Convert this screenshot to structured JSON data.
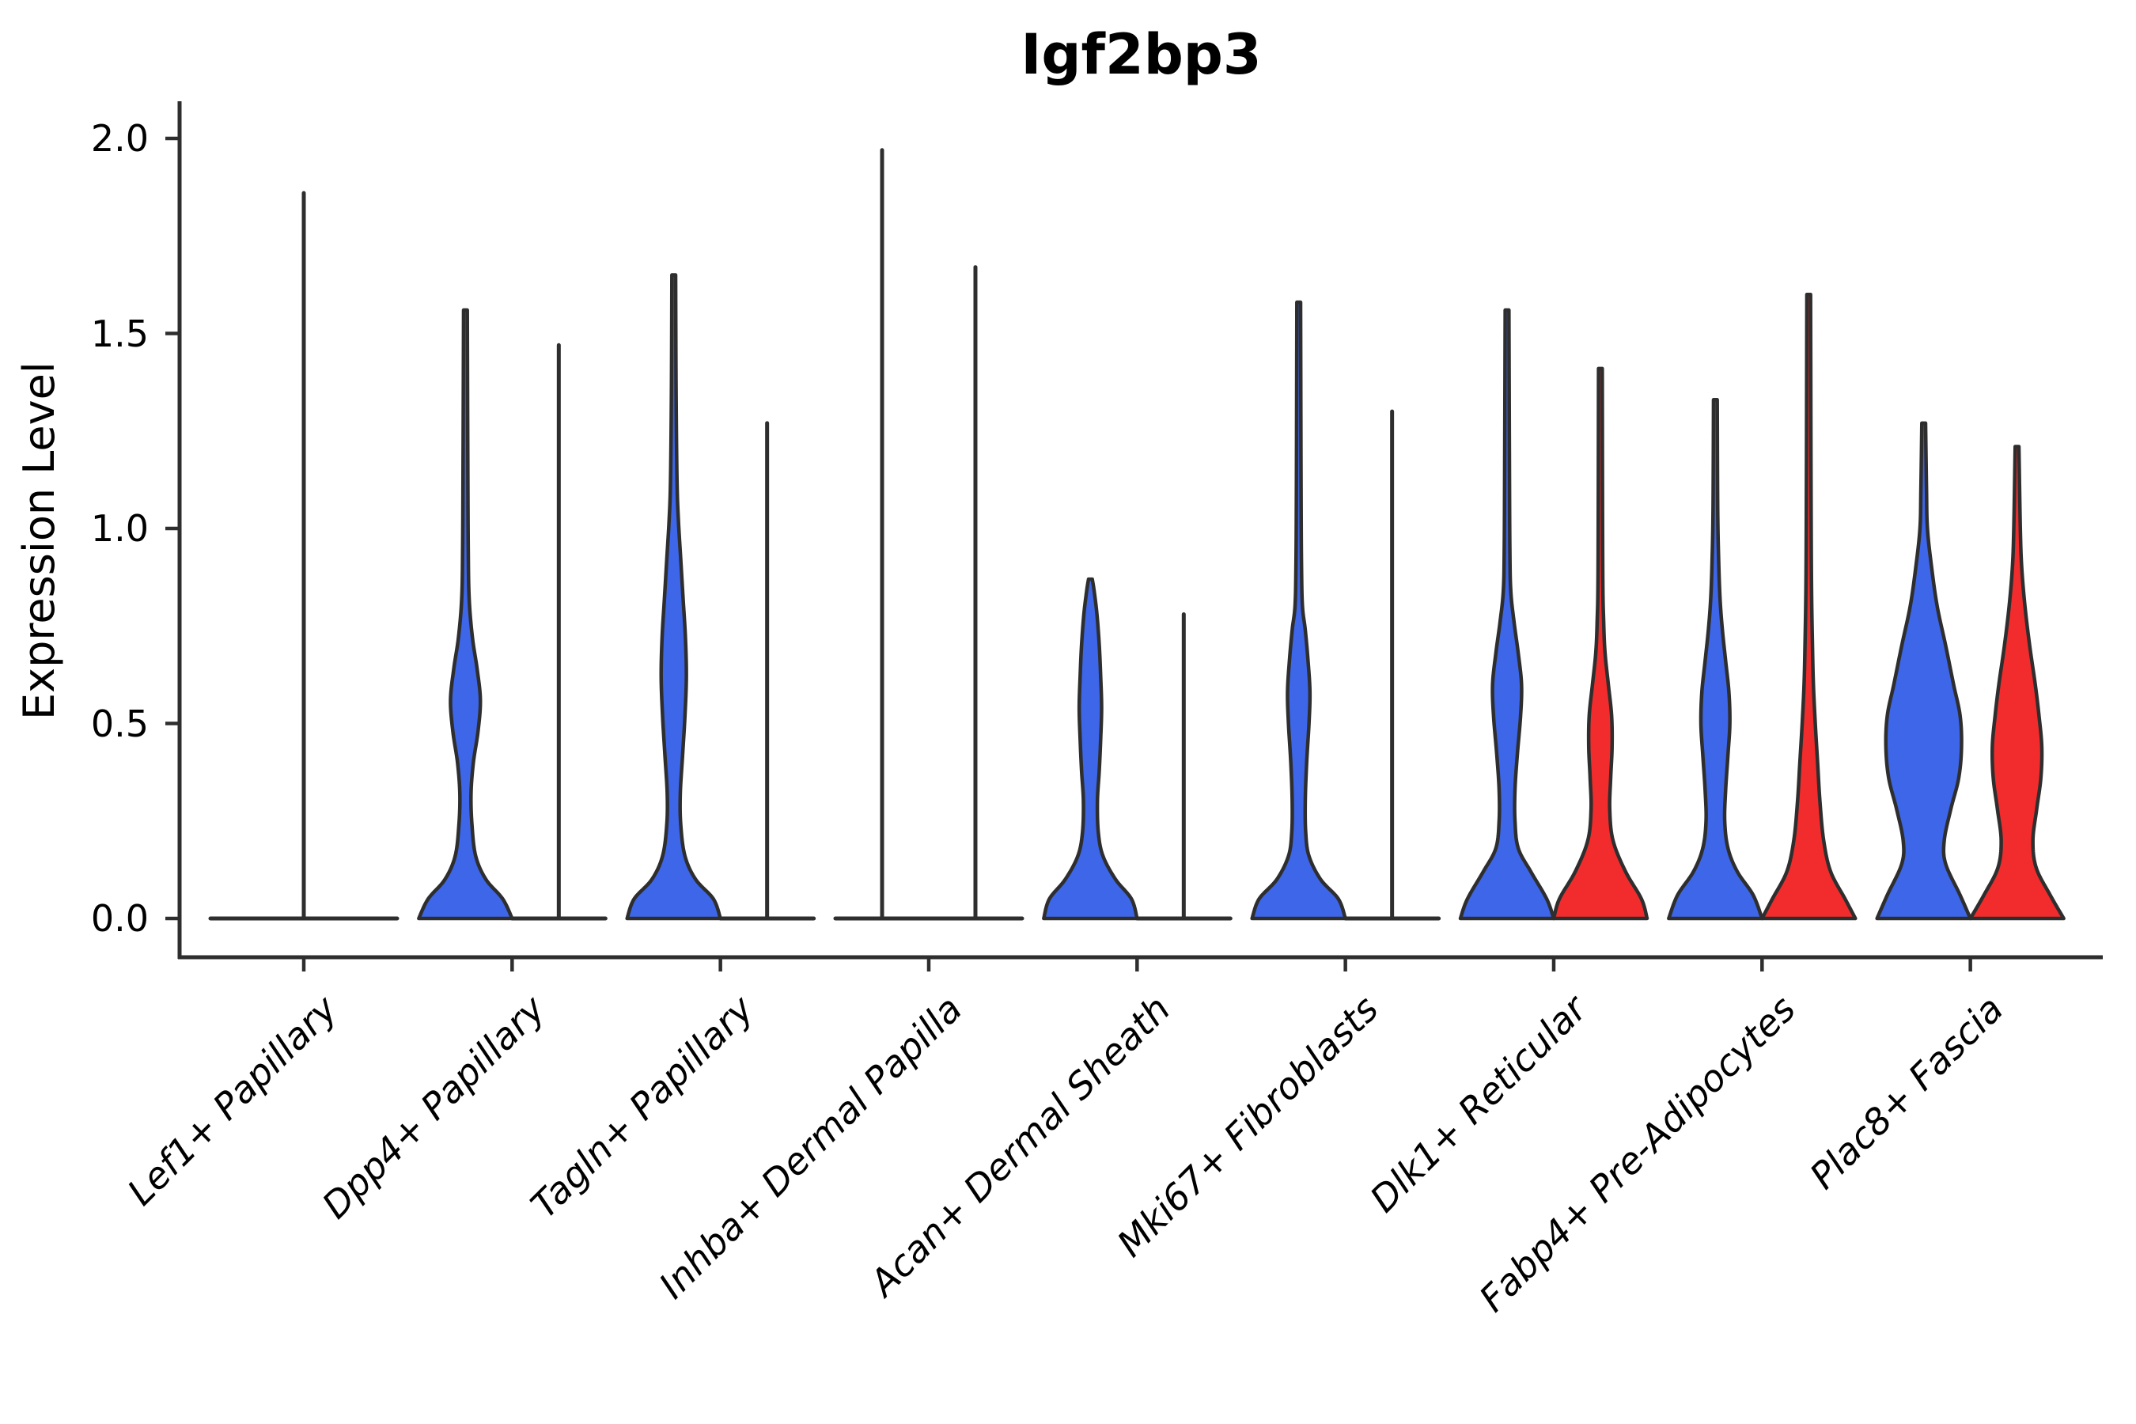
{
  "title": "Igf2bp3",
  "axes": {
    "ylabel": "Expression Level",
    "ytick_labels": [
      "0.0",
      "0.5",
      "1.0",
      "1.5",
      "2.0"
    ]
  },
  "colors": {
    "violin_blue": "#3d66e8",
    "violin_red": "#f22c2c",
    "outline": "#2e2e2e",
    "background": "#ffffff"
  },
  "chart_data": {
    "type": "violin",
    "title": "Igf2bp3",
    "ylabel": "Expression Level",
    "ylim": [
      0,
      2.09
    ],
    "yticks": [
      0.0,
      0.5,
      1.0,
      1.5,
      2.0
    ],
    "ytick_labels": [
      "0.0",
      "0.5",
      "1.0",
      "1.5",
      "2.0"
    ],
    "x_tick_rotation": 45,
    "grid": false,
    "legend": "none",
    "categories": [
      "Lef1+ Papillary",
      "Dpp4+ Papillary",
      "Tagln+ Papillary",
      "Inhba+ Dermal Papilla",
      "Acan+ Dermal Sheath",
      "Mki67+ Fibroblasts",
      "Dlk1+ Reticular",
      "Fabp4+ Pre-Adipocytes",
      "Plac8+ Fascia"
    ],
    "groups": [
      {
        "category": "Lef1+ Papillary",
        "violins": [
          {
            "position": "center",
            "shape": "flat",
            "color": null,
            "max_expression": 1.86
          }
        ]
      },
      {
        "category": "Dpp4+ Papillary",
        "violins": [
          {
            "position": "left",
            "shape": "body",
            "color": "#3d66e8",
            "max_expression": 1.56,
            "profile": [
              [
                0,
                1.0
              ],
              [
                0.05,
                0.8
              ],
              [
                0.1,
                0.44
              ],
              [
                0.16,
                0.22
              ],
              [
                0.24,
                0.14
              ],
              [
                0.32,
                0.12
              ],
              [
                0.4,
                0.17
              ],
              [
                0.48,
                0.27
              ],
              [
                0.56,
                0.32
              ],
              [
                0.64,
                0.25
              ],
              [
                0.72,
                0.15
              ],
              [
                0.82,
                0.08
              ],
              [
                0.95,
                0.06
              ],
              [
                1.2,
                0.05
              ],
              [
                1.56,
                0.04
              ]
            ]
          },
          {
            "position": "right",
            "shape": "flat",
            "color": null,
            "max_expression": 1.47
          }
        ]
      },
      {
        "category": "Tagln+ Papillary",
        "violins": [
          {
            "position": "left",
            "shape": "body",
            "color": "#3d66e8",
            "max_expression": 1.65,
            "profile": [
              [
                0,
                1.0
              ],
              [
                0.05,
                0.85
              ],
              [
                0.1,
                0.47
              ],
              [
                0.16,
                0.24
              ],
              [
                0.24,
                0.15
              ],
              [
                0.32,
                0.14
              ],
              [
                0.42,
                0.19
              ],
              [
                0.52,
                0.24
              ],
              [
                0.62,
                0.27
              ],
              [
                0.72,
                0.25
              ],
              [
                0.82,
                0.2
              ],
              [
                0.92,
                0.15
              ],
              [
                1.02,
                0.1
              ],
              [
                1.12,
                0.07
              ],
              [
                1.35,
                0.05
              ],
              [
                1.65,
                0.04
              ]
            ]
          },
          {
            "position": "right",
            "shape": "flat",
            "color": null,
            "max_expression": 1.27
          }
        ]
      },
      {
        "category": "Inhba+ Dermal Papilla",
        "violins": [
          {
            "position": "left",
            "shape": "flat",
            "color": null,
            "max_expression": 1.97
          },
          {
            "position": "right",
            "shape": "flat",
            "color": null,
            "max_expression": 1.67
          }
        ]
      },
      {
        "category": "Acan+ Dermal Sheath",
        "violins": [
          {
            "position": "left",
            "shape": "body",
            "color": "#3d66e8",
            "max_expression": 0.87,
            "profile": [
              [
                0,
                1.0
              ],
              [
                0.05,
                0.88
              ],
              [
                0.1,
                0.54
              ],
              [
                0.16,
                0.27
              ],
              [
                0.22,
                0.17
              ],
              [
                0.3,
                0.15
              ],
              [
                0.38,
                0.19
              ],
              [
                0.46,
                0.22
              ],
              [
                0.54,
                0.24
              ],
              [
                0.62,
                0.22
              ],
              [
                0.7,
                0.19
              ],
              [
                0.78,
                0.14
              ],
              [
                0.84,
                0.08
              ],
              [
                0.87,
                0.04
              ]
            ]
          },
          {
            "position": "right",
            "shape": "flat",
            "color": null,
            "max_expression": 0.78
          }
        ]
      },
      {
        "category": "Mki67+ Fibroblasts",
        "violins": [
          {
            "position": "left",
            "shape": "body",
            "color": "#3d66e8",
            "max_expression": 1.58,
            "profile": [
              [
                0,
                1.0
              ],
              [
                0.05,
                0.85
              ],
              [
                0.1,
                0.47
              ],
              [
                0.16,
                0.22
              ],
              [
                0.22,
                0.15
              ],
              [
                0.3,
                0.14
              ],
              [
                0.4,
                0.17
              ],
              [
                0.5,
                0.22
              ],
              [
                0.58,
                0.24
              ],
              [
                0.66,
                0.2
              ],
              [
                0.74,
                0.14
              ],
              [
                0.8,
                0.08
              ],
              [
                0.9,
                0.06
              ],
              [
                1.1,
                0.05
              ],
              [
                1.58,
                0.04
              ]
            ]
          },
          {
            "position": "right",
            "shape": "flat",
            "color": null,
            "max_expression": 1.3
          }
        ]
      },
      {
        "category": "Dlk1+ Reticular",
        "violins": [
          {
            "position": "left",
            "shape": "body",
            "color": "#3d66e8",
            "max_expression": 1.56,
            "profile": [
              [
                0,
                1.0
              ],
              [
                0.05,
                0.85
              ],
              [
                0.12,
                0.51
              ],
              [
                0.18,
                0.24
              ],
              [
                0.25,
                0.17
              ],
              [
                0.33,
                0.17
              ],
              [
                0.42,
                0.22
              ],
              [
                0.52,
                0.29
              ],
              [
                0.6,
                0.31
              ],
              [
                0.68,
                0.24
              ],
              [
                0.76,
                0.15
              ],
              [
                0.84,
                0.08
              ],
              [
                0.95,
                0.06
              ],
              [
                1.2,
                0.05
              ],
              [
                1.56,
                0.04
              ]
            ]
          },
          {
            "position": "right",
            "shape": "body",
            "color": "#f22c2c",
            "max_expression": 1.41,
            "profile": [
              [
                0,
                1.0
              ],
              [
                0.05,
                0.88
              ],
              [
                0.12,
                0.54
              ],
              [
                0.2,
                0.27
              ],
              [
                0.28,
                0.2
              ],
              [
                0.36,
                0.22
              ],
              [
                0.44,
                0.25
              ],
              [
                0.52,
                0.24
              ],
              [
                0.6,
                0.17
              ],
              [
                0.68,
                0.1
              ],
              [
                0.76,
                0.07
              ],
              [
                0.9,
                0.05
              ],
              [
                1.41,
                0.04
              ]
            ]
          }
        ]
      },
      {
        "category": "Fabp4+ Pre-Adipocytes",
        "violins": [
          {
            "position": "left",
            "shape": "body",
            "color": "#3d66e8",
            "max_expression": 1.33,
            "profile": [
              [
                0,
                1.0
              ],
              [
                0.06,
                0.81
              ],
              [
                0.12,
                0.47
              ],
              [
                0.18,
                0.27
              ],
              [
                0.25,
                0.2
              ],
              [
                0.33,
                0.22
              ],
              [
                0.42,
                0.27
              ],
              [
                0.5,
                0.31
              ],
              [
                0.58,
                0.29
              ],
              [
                0.66,
                0.22
              ],
              [
                0.74,
                0.15
              ],
              [
                0.82,
                0.1
              ],
              [
                0.92,
                0.07
              ],
              [
                1.05,
                0.05
              ],
              [
                1.33,
                0.04
              ]
            ]
          },
          {
            "position": "right",
            "shape": "body",
            "color": "#f22c2c",
            "max_expression": 1.6,
            "profile": [
              [
                0,
                1.0
              ],
              [
                0.05,
                0.78
              ],
              [
                0.12,
                0.47
              ],
              [
                0.2,
                0.32
              ],
              [
                0.3,
                0.24
              ],
              [
                0.4,
                0.19
              ],
              [
                0.5,
                0.14
              ],
              [
                0.6,
                0.1
              ],
              [
                0.7,
                0.08
              ],
              [
                0.85,
                0.06
              ],
              [
                1.1,
                0.05
              ],
              [
                1.6,
                0.04
              ]
            ]
          }
        ]
      },
      {
        "category": "Plac8+ Fascia",
        "violins": [
          {
            "position": "left",
            "shape": "body",
            "color": "#3d66e8",
            "max_expression": 1.27,
            "profile": [
              [
                0,
                1.0
              ],
              [
                0.06,
                0.78
              ],
              [
                0.14,
                0.47
              ],
              [
                0.2,
                0.44
              ],
              [
                0.28,
                0.58
              ],
              [
                0.36,
                0.75
              ],
              [
                0.44,
                0.81
              ],
              [
                0.52,
                0.78
              ],
              [
                0.6,
                0.64
              ],
              [
                0.7,
                0.47
              ],
              [
                0.8,
                0.29
              ],
              [
                0.9,
                0.17
              ],
              [
                1.0,
                0.08
              ],
              [
                1.1,
                0.06
              ],
              [
                1.27,
                0.04
              ]
            ]
          },
          {
            "position": "right",
            "shape": "body",
            "color": "#f22c2c",
            "max_expression": 1.21,
            "profile": [
              [
                0,
                1.0
              ],
              [
                0.06,
                0.71
              ],
              [
                0.13,
                0.41
              ],
              [
                0.2,
                0.34
              ],
              [
                0.28,
                0.42
              ],
              [
                0.36,
                0.51
              ],
              [
                0.44,
                0.53
              ],
              [
                0.52,
                0.47
              ],
              [
                0.6,
                0.39
              ],
              [
                0.7,
                0.27
              ],
              [
                0.8,
                0.17
              ],
              [
                0.9,
                0.1
              ],
              [
                1.0,
                0.07
              ],
              [
                1.21,
                0.04
              ]
            ]
          }
        ]
      }
    ]
  }
}
